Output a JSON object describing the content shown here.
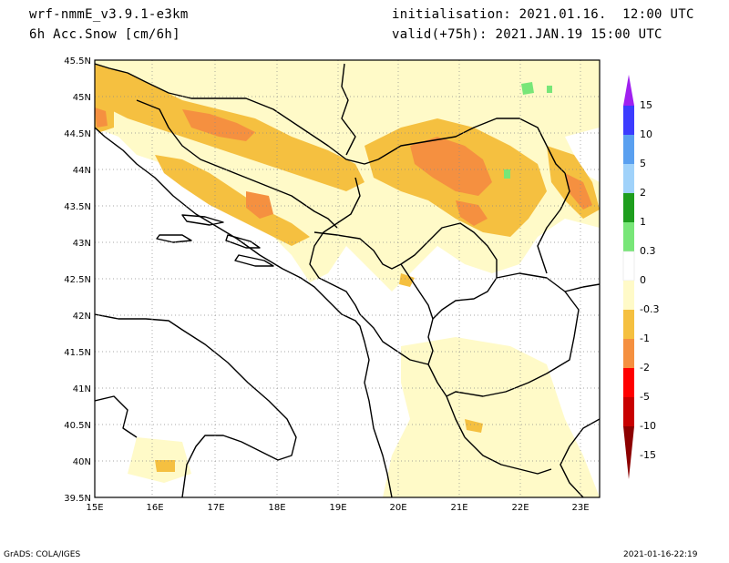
{
  "header": {
    "model": "wrf-nmmE_v3.9.1-e3km",
    "field": "6h Acc.Snow [cm/6h]",
    "init": "initialisation: 2021.01.16.  12:00 UTC",
    "valid": "valid(+75h): 2021.JAN.19 15:00 UTC"
  },
  "map": {
    "lat_labels": [
      "45.5N",
      "45N",
      "44.5N",
      "44N",
      "43.5N",
      "43N",
      "42.5N",
      "42N",
      "41.5N",
      "41N",
      "40.5N",
      "40N",
      "39.5N"
    ],
    "lon_labels": [
      "15E",
      "16E",
      "17E",
      "18E",
      "19E",
      "20E",
      "21E",
      "22E",
      "23E"
    ],
    "lat_range": [
      39.5,
      45.5
    ],
    "lon_range": [
      15.0,
      23.3
    ],
    "grid": "dotted"
  },
  "colorbar": {
    "labels": [
      "15",
      "10",
      "5",
      "2",
      "1",
      "0.3",
      "0",
      "-0.3",
      "-1",
      "-2",
      "-5",
      "-10",
      "-15"
    ],
    "colors": [
      "#a020f0",
      "#3c3cff",
      "#5aa0f0",
      "#a0d2fa",
      "#1e9e1e",
      "#78e678",
      "#ffffff",
      "#fffac8",
      "#f5c040",
      "#f59040",
      "#ff0000",
      "#c80000",
      "#8c0000"
    ]
  },
  "footer": {
    "left": "GrADS: COLA/IGES",
    "right": "2021-01-16-22:19"
  }
}
